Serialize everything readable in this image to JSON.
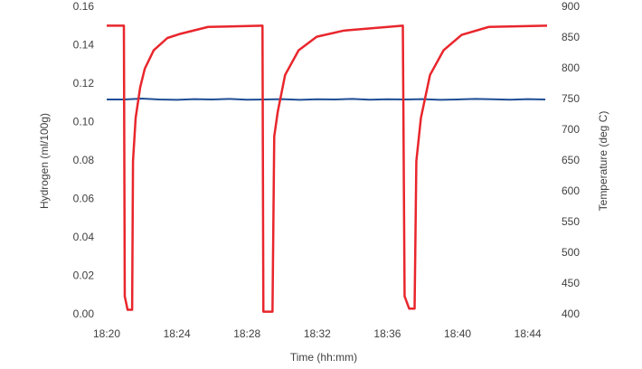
{
  "chart_data": {
    "type": "line",
    "x_label": "Time (hh:mm)",
    "y_label": "Hydrogen (ml/100g)",
    "y2_label": "Temperature (deg C)",
    "xlim": [
      1100,
      1125.1
    ],
    "xticks": [
      {
        "value": 1100,
        "label": "18:20"
      },
      {
        "value": 1104,
        "label": "18:24"
      },
      {
        "value": 1108,
        "label": "18:28"
      },
      {
        "value": 1112,
        "label": "18:32"
      },
      {
        "value": 1116,
        "label": "18:36"
      },
      {
        "value": 1120,
        "label": "18:40"
      },
      {
        "value": 1124,
        "label": "18:44"
      }
    ],
    "ylim": [
      0,
      0.16
    ],
    "yticks": [
      {
        "value": 0,
        "label": "0.00"
      },
      {
        "value": 0.02,
        "label": "0.02"
      },
      {
        "value": 0.04,
        "label": "0.04"
      },
      {
        "value": 0.06,
        "label": "0.06"
      },
      {
        "value": 0.08,
        "label": "0.08"
      },
      {
        "value": 0.1,
        "label": "0.10"
      },
      {
        "value": 0.12,
        "label": "0.12"
      },
      {
        "value": 0.14,
        "label": "0.14"
      },
      {
        "value": 0.16,
        "label": "0.16"
      }
    ],
    "y2lim": [
      400,
      900
    ],
    "y2ticks": [
      400,
      450,
      500,
      550,
      600,
      650,
      700,
      750,
      800,
      850,
      900
    ],
    "grid": false,
    "series": [
      {
        "color": "#1f4e96",
        "x": [
          1100,
          1101,
          1102,
          1103,
          1104,
          1105,
          1106,
          1107,
          1108,
          1109,
          1110,
          1111,
          1112,
          1113,
          1114,
          1115,
          1116,
          1117,
          1118,
          1119,
          1120,
          1121,
          1122,
          1123,
          1124,
          1125
        ],
        "values": [
          0.112,
          0.112,
          0.1125,
          0.112,
          0.1118,
          0.1122,
          0.112,
          0.1123,
          0.1119,
          0.112,
          0.1122,
          0.1118,
          0.1121,
          0.112,
          0.1123,
          0.1119,
          0.1121,
          0.112,
          0.1122,
          0.1118,
          0.112,
          0.1123,
          0.1121,
          0.1119,
          0.1122,
          0.112
        ]
      },
      {
        "color": "#e8262c",
        "axis": "y2",
        "x": [
          1100,
          1100.98,
          1101.03,
          1101.19,
          1101.45,
          1101.5,
          1101.65,
          1101.91,
          1102.17,
          1102.68,
          1103.46,
          1104.23,
          1105.78,
          1108.88,
          1108.93,
          1109.45,
          1109.55,
          1109.75,
          1110.17,
          1110.94,
          1111.97,
          1113.52,
          1116.88,
          1116.98,
          1117.24,
          1117.55,
          1117.65,
          1117.91,
          1118.43,
          1119.2,
          1120.23,
          1121.78,
          1125.1
        ],
        "values": [
          870,
          870,
          430,
          408,
          408,
          650,
          720,
          770,
          800,
          830,
          850,
          857,
          868,
          870,
          405,
          405,
          690,
          730,
          790,
          830,
          852,
          862,
          870,
          430,
          410,
          410,
          650,
          720,
          790,
          830,
          855,
          868,
          870
        ]
      }
    ]
  }
}
